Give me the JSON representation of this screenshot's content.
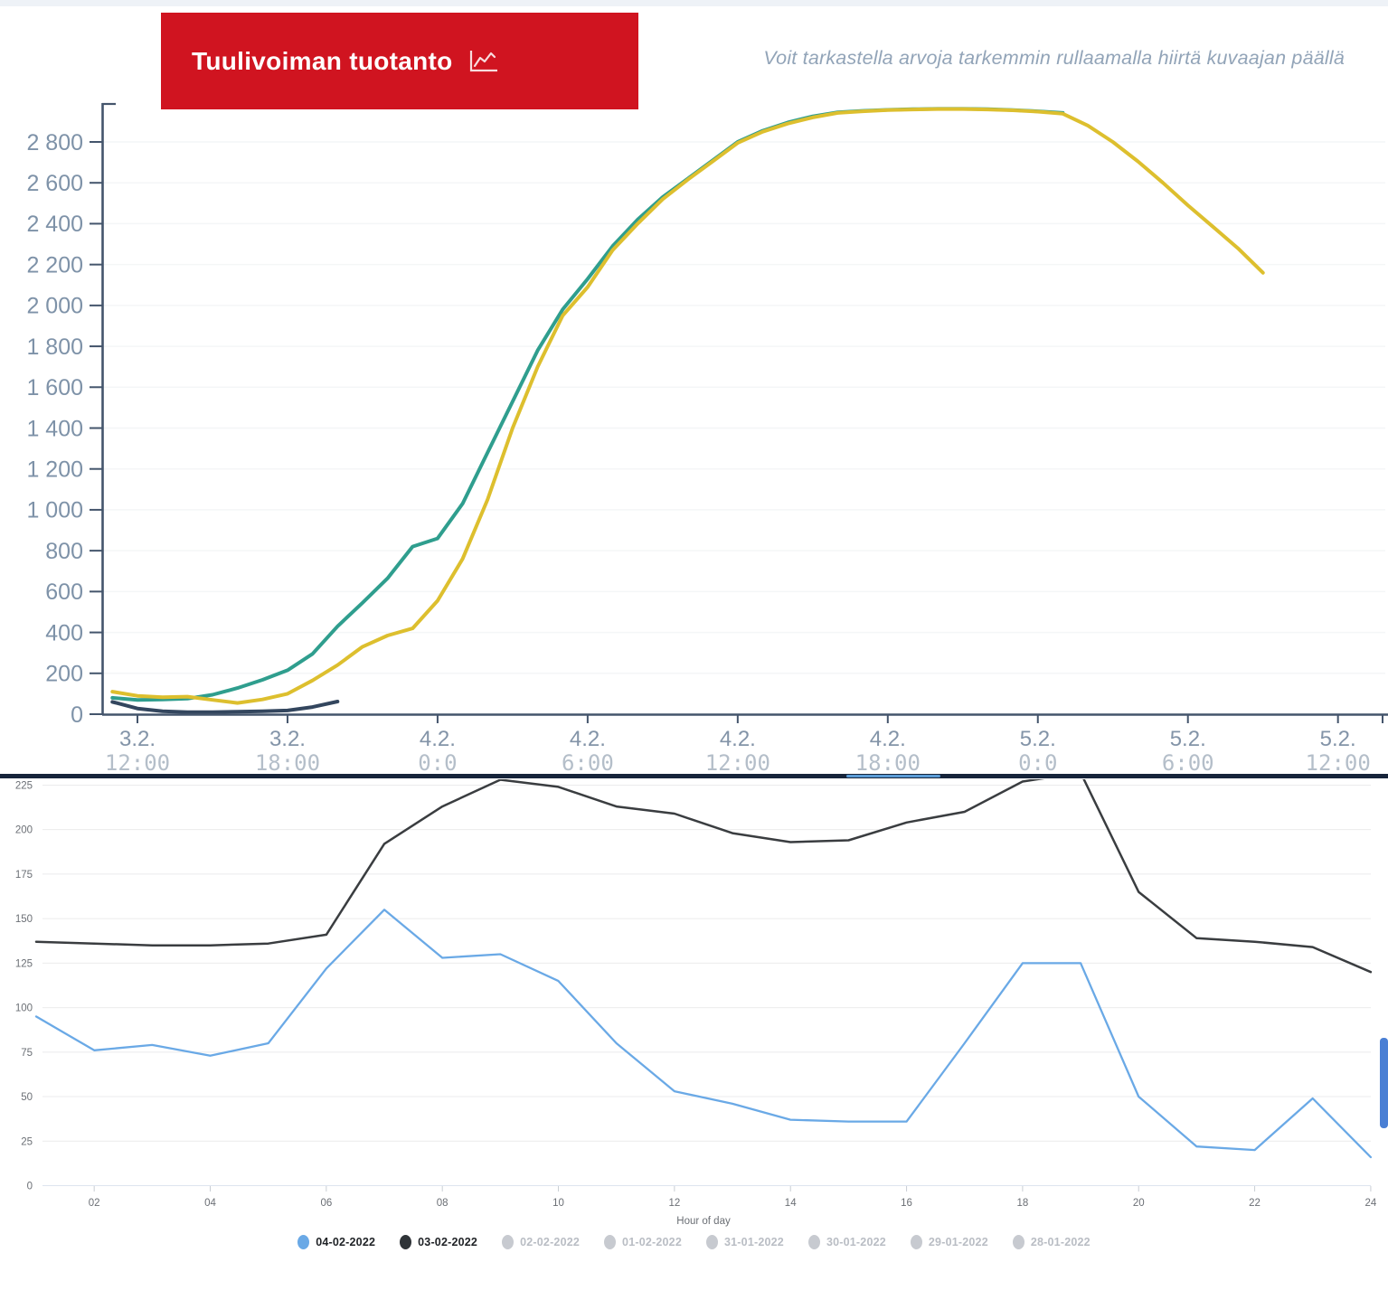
{
  "header": {
    "title": "Tuulivoiman tuotanto",
    "title_icon": "line-chart-icon",
    "subtitle": "Voit tarkastella arvoja tarkemmin rullaamalla hiirtä kuvaajan päällä"
  },
  "colors": {
    "title_bg": "#d01420",
    "title_text": "#ffffff",
    "subtitle_text": "#92a4b8",
    "top_axis": "#44556c",
    "top_y_label": "#7e92a8",
    "top_x_date": "#8394a8",
    "top_x_time": "#b4bec9",
    "top_grid": "#f4f6f7",
    "teal_line": "#2f9e8e",
    "yellow_line": "#ddbf2e",
    "navy_line": "#33465e",
    "blue_line": "#6aa9e6",
    "black_line": "#3a3d40",
    "bottom_grid": "#ebebec",
    "bottom_zero_line": "#dde4ef",
    "bottom_label": "#6b6f75",
    "bottom_tick": "#c9ced4",
    "separator": "#16243a",
    "separator_highlight": "#5b9bd5",
    "scrollbar_thumb": "#4a7fd4",
    "legend_active_text": "#1f2226",
    "legend_inactive_dot": "#c7cad0",
    "legend_inactive_text": "#b9bdc4"
  },
  "chart_data": [
    {
      "id": "wind-production",
      "type": "line",
      "title": "Tuulivoiman tuotanto",
      "grid": "faint-horizontal",
      "ylim": [
        0,
        2980
      ],
      "y_ticks": [
        0,
        200,
        400,
        600,
        800,
        1000,
        1200,
        1400,
        1600,
        1800,
        2000,
        2200,
        2400,
        2600,
        2800
      ],
      "y_tick_labels": [
        "0",
        "200",
        "400",
        "600",
        "800",
        "1 000",
        "1 200",
        "1 400",
        "1 600",
        "1 800",
        "2 000",
        "2 200",
        "2 400",
        "2 600",
        "2 800"
      ],
      "x_start": "3.2. 11:00",
      "x_step_hours": 1,
      "x_ticks": [
        {
          "date": "3.2.",
          "time": "12:00",
          "t": 1
        },
        {
          "date": "3.2.",
          "time": "18:00",
          "t": 7
        },
        {
          "date": "4.2.",
          "time": "0:0",
          "t": 13
        },
        {
          "date": "4.2.",
          "time": "6:00",
          "t": 19
        },
        {
          "date": "4.2.",
          "time": "12:00",
          "t": 25
        },
        {
          "date": "4.2.",
          "time": "18:00",
          "t": 31
        },
        {
          "date": "5.2.",
          "time": "0:0",
          "t": 37
        },
        {
          "date": "5.2.",
          "time": "6:00",
          "t": 43
        },
        {
          "date": "5.2.",
          "time": "12:00",
          "t": 49
        }
      ],
      "series": [
        {
          "name": "tuotanto-teal",
          "color": "#2f9e8e",
          "values": [
            80,
            70,
            72,
            76,
            95,
            128,
            168,
            215,
            295,
            430,
            545,
            665,
            820,
            860,
            1030,
            1280,
            1530,
            1780,
            1980,
            2130,
            2290,
            2420,
            2530,
            2620,
            2710,
            2800,
            2855,
            2895,
            2925,
            2945,
            2952,
            2957,
            2960,
            2962,
            2962,
            2960,
            2956,
            2950,
            2942
          ]
        },
        {
          "name": "ennuste-yellow",
          "color": "#ddbf2e",
          "values": [
            110,
            90,
            83,
            86,
            70,
            55,
            72,
            100,
            165,
            240,
            330,
            385,
            420,
            555,
            760,
            1050,
            1400,
            1700,
            1950,
            2090,
            2270,
            2400,
            2520,
            2615,
            2705,
            2795,
            2850,
            2890,
            2920,
            2942,
            2950,
            2956,
            2959,
            2961,
            2961,
            2959,
            2955,
            2948,
            2938,
            2880,
            2800,
            2705,
            2600,
            2490,
            2385,
            2280,
            2160
          ]
        },
        {
          "name": "lyhyt-navy",
          "color": "#33465e",
          "values": [
            60,
            28,
            14,
            10,
            10,
            12,
            14,
            18,
            35,
            62
          ]
        }
      ]
    },
    {
      "id": "hourly-comparison",
      "type": "line",
      "xlabel": "Hour of day",
      "ylim": [
        0,
        225
      ],
      "y_ticks": [
        0,
        25,
        50,
        75,
        100,
        125,
        150,
        175,
        200,
        225
      ],
      "x_ticks": [
        {
          "label": "02",
          "h": 2
        },
        {
          "label": "04",
          "h": 4
        },
        {
          "label": "06",
          "h": 6
        },
        {
          "label": "08",
          "h": 8
        },
        {
          "label": "10",
          "h": 10
        },
        {
          "label": "12",
          "h": 12
        },
        {
          "label": "14",
          "h": 14
        },
        {
          "label": "16",
          "h": 16
        },
        {
          "label": "18",
          "h": 18
        },
        {
          "label": "20",
          "h": 20
        },
        {
          "label": "22",
          "h": 22
        },
        {
          "label": "24",
          "h": 24
        }
      ],
      "series": [
        {
          "name": "04-02-2022",
          "color": "#6aa9e6",
          "values": [
            95,
            76,
            79,
            73,
            80,
            122,
            155,
            128,
            130,
            115,
            80,
            53,
            46,
            37,
            36,
            36,
            80,
            125,
            125,
            50,
            22,
            20,
            49,
            16
          ]
        },
        {
          "name": "03-02-2022",
          "color": "#3a3d40",
          "values": [
            137,
            136,
            135,
            135,
            136,
            141,
            192,
            213,
            228,
            224,
            213,
            209,
            198,
            193,
            194,
            204,
            210,
            227,
            232,
            165,
            139,
            137,
            134,
            120
          ]
        }
      ],
      "legend": [
        {
          "label": "04-02-2022",
          "active": true,
          "color": "#6aa9e6"
        },
        {
          "label": "03-02-2022",
          "active": true,
          "color": "#2f3438"
        },
        {
          "label": "02-02-2022",
          "active": false,
          "color": "#c7cad0"
        },
        {
          "label": "01-02-2022",
          "active": false,
          "color": "#c7cad0"
        },
        {
          "label": "31-01-2022",
          "active": false,
          "color": "#c7cad0"
        },
        {
          "label": "30-01-2022",
          "active": false,
          "color": "#c7cad0"
        },
        {
          "label": "29-01-2022",
          "active": false,
          "color": "#c7cad0"
        },
        {
          "label": "28-01-2022",
          "active": false,
          "color": "#c7cad0"
        }
      ]
    }
  ]
}
